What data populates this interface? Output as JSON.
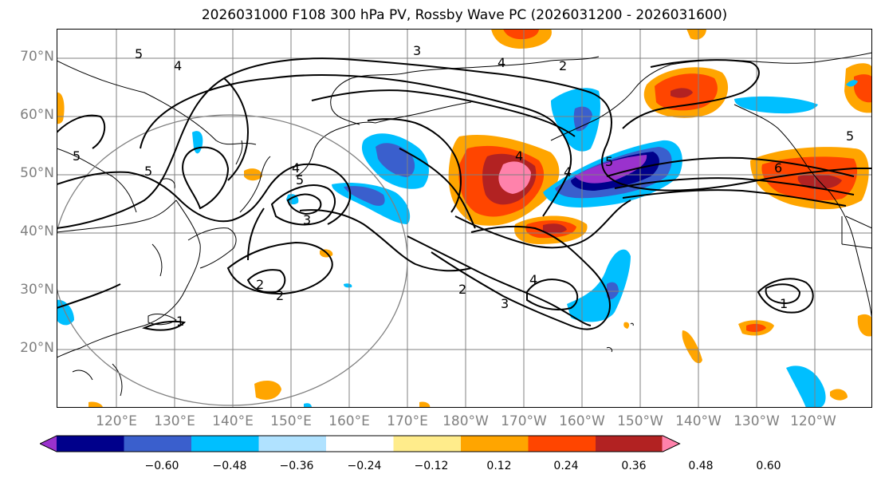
{
  "title": "2026031000 F108 300 hPa PV, Rossby Wave PC (2026031200 - 2026031600)",
  "lat_labels": [
    "70°N",
    "60°N",
    "50°N",
    "40°N",
    "30°N",
    "20°N"
  ],
  "lon_labels": [
    "120°E",
    "130°E",
    "140°E",
    "150°E",
    "160°E",
    "170°E",
    "180°W",
    "170°W",
    "160°W",
    "150°W",
    "140°W",
    "130°W",
    "120°W"
  ],
  "contour_labels": [
    "1",
    "2",
    "3",
    "4",
    "5",
    "6"
  ],
  "colorbar": {
    "ticks": [
      "−0.60",
      "−0.48",
      "−0.36",
      "−0.24",
      "−0.12",
      "0.12",
      "0.24",
      "0.36",
      "0.48",
      "0.60"
    ],
    "colors": [
      "#9a32cd",
      "#00008b",
      "#3a5fcd",
      "#00bfff",
      "#b0e2ff",
      "#ffffff",
      "#ffec8b",
      "#ffa500",
      "#ff4500",
      "#b22222",
      "#ff82ab"
    ]
  },
  "colors": {
    "contour": "#000000",
    "grid": "#808080",
    "coast": "#000000"
  }
}
